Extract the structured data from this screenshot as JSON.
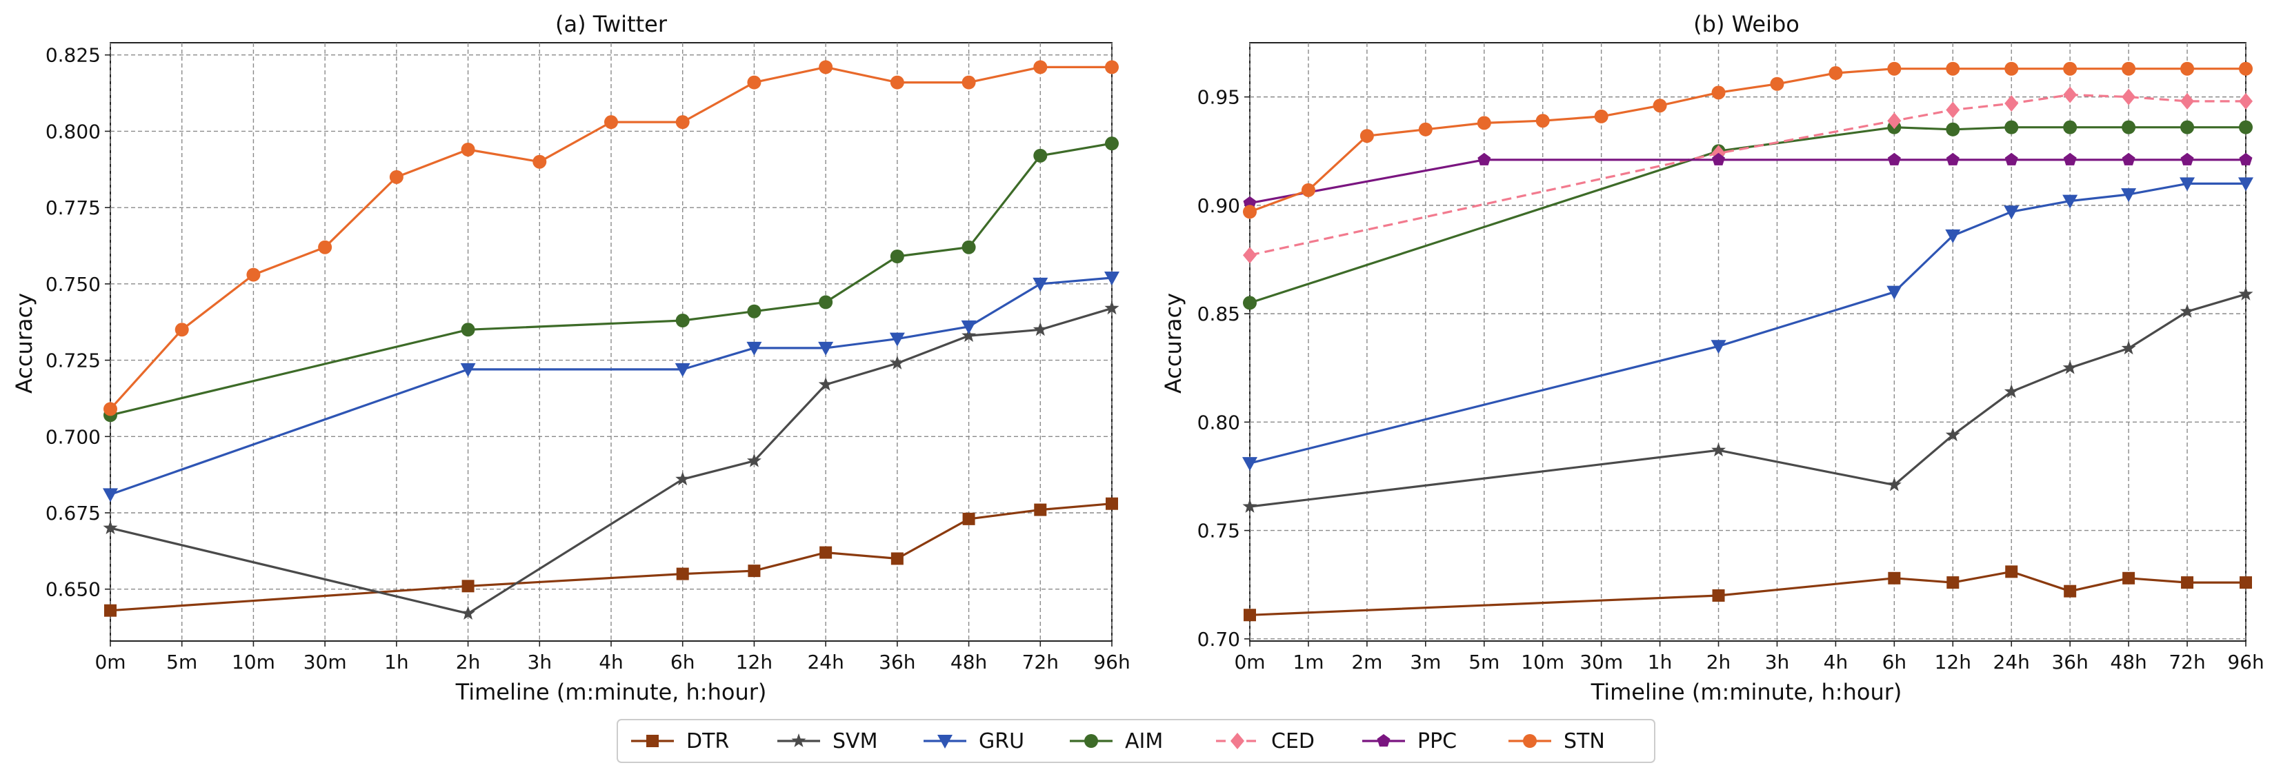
{
  "chart_data": [
    {
      "type": "line",
      "title": "(a) Twitter",
      "xlabel": "Timeline (m:minute, h:hour)",
      "ylabel": "Accuracy",
      "categories": [
        "0m",
        "5m",
        "10m",
        "30m",
        "1h",
        "2h",
        "3h",
        "4h",
        "6h",
        "12h",
        "24h",
        "36h",
        "48h",
        "72h",
        "96h"
      ],
      "ylim": [
        0.633,
        0.829
      ],
      "yticks": [
        0.65,
        0.675,
        0.7,
        0.725,
        0.75,
        0.775,
        0.8,
        0.825
      ],
      "ytick_labels": [
        "0.650",
        "0.675",
        "0.700",
        "0.725",
        "0.750",
        "0.775",
        "0.800",
        "0.825"
      ],
      "grid": true,
      "series": [
        {
          "name": "DTR",
          "x": [
            "0m",
            "2h",
            "6h",
            "12h",
            "24h",
            "36h",
            "48h",
            "72h",
            "96h"
          ],
          "values": [
            0.643,
            0.651,
            0.655,
            0.656,
            0.662,
            0.66,
            0.673,
            0.676,
            0.678
          ]
        },
        {
          "name": "SVM",
          "x": [
            "0m",
            "2h",
            "6h",
            "12h",
            "24h",
            "36h",
            "48h",
            "72h",
            "96h"
          ],
          "values": [
            0.67,
            0.642,
            0.686,
            0.692,
            0.717,
            0.724,
            0.733,
            0.735,
            0.742
          ]
        },
        {
          "name": "GRU",
          "x": [
            "0m",
            "2h",
            "6h",
            "12h",
            "24h",
            "36h",
            "48h",
            "72h",
            "96h"
          ],
          "values": [
            0.681,
            0.722,
            0.722,
            0.729,
            0.729,
            0.732,
            0.736,
            0.75,
            0.752
          ]
        },
        {
          "name": "AIM",
          "x": [
            "0m",
            "2h",
            "6h",
            "12h",
            "24h",
            "36h",
            "48h",
            "72h",
            "96h"
          ],
          "values": [
            0.707,
            0.735,
            0.738,
            0.741,
            0.744,
            0.759,
            0.762,
            0.792,
            0.796
          ]
        },
        {
          "name": "STN",
          "x": [
            "0m",
            "5m",
            "10m",
            "30m",
            "1h",
            "2h",
            "3h",
            "4h",
            "6h",
            "12h",
            "24h",
            "36h",
            "48h",
            "72h",
            "96h"
          ],
          "values": [
            0.709,
            0.735,
            0.753,
            0.762,
            0.785,
            0.794,
            0.79,
            0.803,
            0.803,
            0.816,
            0.821,
            0.816,
            0.816,
            0.821,
            0.821
          ]
        }
      ]
    },
    {
      "type": "line",
      "title": "(b) Weibo",
      "xlabel": "Timeline (m:minute, h:hour)",
      "ylabel": "Accuracy",
      "categories": [
        "0m",
        "1m",
        "2m",
        "3m",
        "5m",
        "10m",
        "30m",
        "1h",
        "2h",
        "3h",
        "4h",
        "6h",
        "12h",
        "24h",
        "36h",
        "48h",
        "72h",
        "96h"
      ],
      "ylim": [
        0.699,
        0.975
      ],
      "yticks": [
        0.7,
        0.75,
        0.8,
        0.85,
        0.9,
        0.95
      ],
      "ytick_labels": [
        "0.70",
        "0.75",
        "0.80",
        "0.85",
        "0.90",
        "0.95"
      ],
      "grid": true,
      "series": [
        {
          "name": "DTR",
          "x": [
            "0m",
            "2h",
            "6h",
            "12h",
            "24h",
            "36h",
            "48h",
            "72h",
            "96h"
          ],
          "values": [
            0.711,
            0.72,
            0.728,
            0.726,
            0.731,
            0.722,
            0.728,
            0.726,
            0.726
          ]
        },
        {
          "name": "SVM",
          "x": [
            "0m",
            "2h",
            "6h",
            "12h",
            "24h",
            "36h",
            "48h",
            "72h",
            "96h"
          ],
          "values": [
            0.761,
            0.787,
            0.771,
            0.794,
            0.814,
            0.825,
            0.834,
            0.851,
            0.859
          ]
        },
        {
          "name": "GRU",
          "x": [
            "0m",
            "2h",
            "6h",
            "12h",
            "24h",
            "36h",
            "48h",
            "72h",
            "96h"
          ],
          "values": [
            0.781,
            0.835,
            0.86,
            0.886,
            0.897,
            0.902,
            0.905,
            0.91,
            0.91
          ]
        },
        {
          "name": "AIM",
          "x": [
            "0m",
            "2h",
            "6h",
            "12h",
            "24h",
            "36h",
            "48h",
            "72h",
            "96h"
          ],
          "values": [
            0.855,
            0.925,
            0.936,
            0.935,
            0.936,
            0.936,
            0.936,
            0.936,
            0.936
          ]
        },
        {
          "name": "CED",
          "x": [
            "0m",
            "2h",
            "6h",
            "12h",
            "24h",
            "36h",
            "48h",
            "72h",
            "96h"
          ],
          "values": [
            0.877,
            0.924,
            0.939,
            0.944,
            0.947,
            0.951,
            0.95,
            0.948,
            0.948
          ]
        },
        {
          "name": "PPC",
          "x": [
            "0m",
            "5m",
            "2h",
            "6h",
            "12h",
            "24h",
            "36h",
            "48h",
            "72h",
            "96h"
          ],
          "values": [
            0.901,
            0.921,
            0.921,
            0.921,
            0.921,
            0.921,
            0.921,
            0.921,
            0.921,
            0.921
          ]
        },
        {
          "name": "STN",
          "x": [
            "0m",
            "1m",
            "2m",
            "3m",
            "5m",
            "10m",
            "30m",
            "1h",
            "2h",
            "3h",
            "4h",
            "6h",
            "12h",
            "24h",
            "36h",
            "48h",
            "72h",
            "96h"
          ],
          "values": [
            0.897,
            0.907,
            0.932,
            0.935,
            0.938,
            0.939,
            0.941,
            0.946,
            0.952,
            0.956,
            0.961,
            0.963,
            0.963,
            0.963,
            0.963,
            0.963,
            0.963,
            0.963
          ]
        }
      ]
    }
  ],
  "legend": {
    "placement": "bottom-center",
    "items": [
      {
        "name": "DTR",
        "color": "#8b3a0e",
        "marker": "square",
        "dash": false
      },
      {
        "name": "SVM",
        "color": "#4a4a4a",
        "marker": "star",
        "dash": false
      },
      {
        "name": "GRU",
        "color": "#2e55b4",
        "marker": "triangle-down",
        "dash": false
      },
      {
        "name": "AIM",
        "color": "#3d6b28",
        "marker": "circle",
        "dash": false
      },
      {
        "name": "CED",
        "color": "#f27a8e",
        "marker": "diamond",
        "dash": true
      },
      {
        "name": "PPC",
        "color": "#7a1580",
        "marker": "pentagon",
        "dash": false
      },
      {
        "name": "STN",
        "color": "#e8692a",
        "marker": "circle",
        "dash": false
      }
    ]
  }
}
